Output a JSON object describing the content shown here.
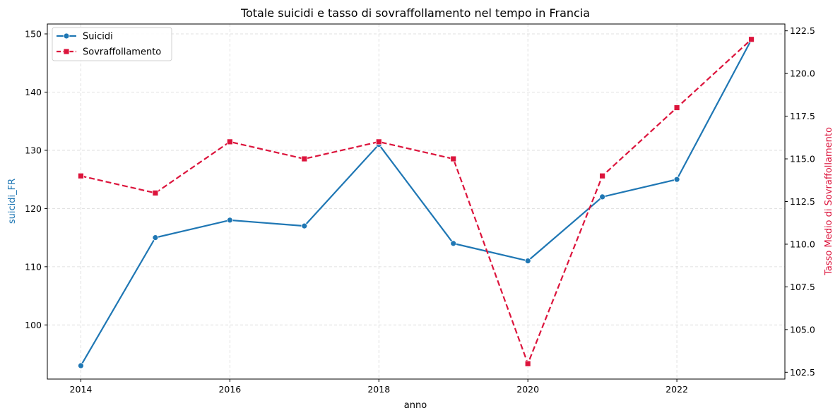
{
  "chart_data": {
    "type": "line",
    "title": "Totale suicidi e tasso di sovraffollamento nel tempo in Francia",
    "xlabel": "anno",
    "ylabel_left": "suicidi_FR",
    "ylabel_right": "Tasso Medio di Sovraffollamento",
    "x": [
      2014,
      2015,
      2016,
      2017,
      2018,
      2019,
      2020,
      2021,
      2022,
      2023
    ],
    "xticks": [
      "2014",
      "2016",
      "2018",
      "2020",
      "2022"
    ],
    "xlim": [
      2013.55,
      2023.45
    ],
    "ylim_left": [
      90.7,
      151.7
    ],
    "yticks_left": [
      "100",
      "110",
      "120",
      "130",
      "140",
      "150"
    ],
    "ylim_right": [
      102.1,
      122.9
    ],
    "yticks_right": [
      "102.5",
      "105.0",
      "107.5",
      "110.0",
      "112.5",
      "115.0",
      "117.5",
      "120.0",
      "122.5"
    ],
    "grid": true,
    "legend_position": "top-left",
    "series": [
      {
        "name": "Suicidi",
        "axis": "left",
        "color": "#1f77b4",
        "marker": "circle",
        "line_style": "solid",
        "values": [
          93,
          115,
          118,
          117,
          131,
          114,
          111,
          122,
          125,
          149
        ]
      },
      {
        "name": "Sovraffollamento",
        "axis": "right",
        "color": "#dc143c",
        "marker": "square",
        "line_style": "dashed",
        "values": [
          114,
          113,
          116,
          115,
          116,
          115,
          103,
          114,
          118,
          122
        ]
      }
    ]
  }
}
